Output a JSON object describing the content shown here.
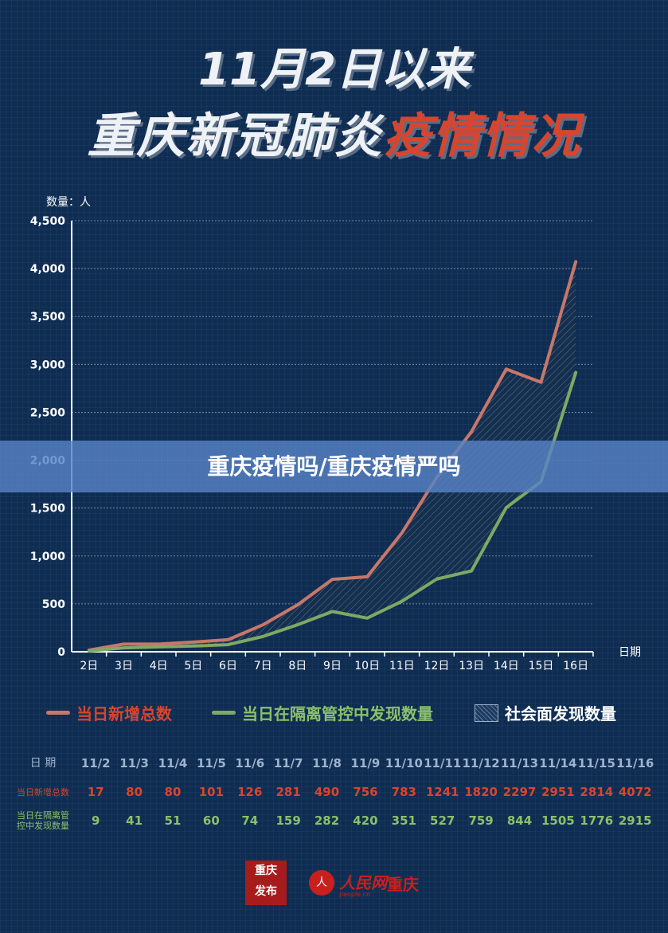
{
  "header": {
    "title_line1": "11月2日以来",
    "title_line2_white": "重庆新冠肺炎",
    "title_line2_red": "疫情情况"
  },
  "overlay_banner": "重庆疫情吗/重庆疫情严吗",
  "colors": {
    "background": "#0f2d52",
    "new_total": "#c9776a",
    "isolation": "#7ea965",
    "accent_red": "#d8452e"
  },
  "chart_data": {
    "type": "line",
    "ylabel": "数量：人",
    "xlabel": "日期",
    "ylim": [
      0,
      4500
    ],
    "yticks": [
      0,
      500,
      1000,
      1500,
      2000,
      2500,
      3000,
      3500,
      4000,
      4500
    ],
    "ytick_labels": [
      "0",
      "500",
      "1,000",
      "1,500",
      "2,000",
      "2,500",
      "3,000",
      "3,500",
      "4,000",
      "4,500"
    ],
    "categories": [
      "2日",
      "3日",
      "4日",
      "5日",
      "6日",
      "7日",
      "8日",
      "9日",
      "10日",
      "11日",
      "12日",
      "13日",
      "14日",
      "15日",
      "16日"
    ],
    "grid": true,
    "legend_position": "bottom",
    "series": [
      {
        "name": "当日新增总数",
        "values": [
          17,
          80,
          80,
          101,
          126,
          281,
          490,
          756,
          783,
          1241,
          1820,
          2297,
          2951,
          2814,
          4072
        ]
      },
      {
        "name": "当日在隔离管控中发现数量",
        "values": [
          9,
          41,
          51,
          60,
          74,
          159,
          282,
          420,
          351,
          527,
          759,
          844,
          1505,
          1776,
          2915
        ]
      }
    ],
    "area_name": "社会面发现数量"
  },
  "table": {
    "header_label": "日 期",
    "dates": [
      "11/2",
      "11/3",
      "11/4",
      "11/5",
      "11/6",
      "11/7",
      "11/8",
      "11/9",
      "11/10",
      "11/11",
      "11/12",
      "11/13",
      "11/14",
      "11/15",
      "11/16"
    ],
    "row1_label": "当日新增总数",
    "row1_values": [
      "17",
      "80",
      "80",
      "101",
      "126",
      "281",
      "490",
      "756",
      "783",
      "1241",
      "1820",
      "2297",
      "2951",
      "2814",
      "4072"
    ],
    "row2_label_line1": "当日在隔离管",
    "row2_label_line2": "控中发现数量",
    "row2_values": [
      "9",
      "41",
      "51",
      "60",
      "74",
      "159",
      "282",
      "420",
      "351",
      "527",
      "759",
      "844",
      "1505",
      "1776",
      "2915"
    ]
  },
  "footer": {
    "logo1_line1": "重庆",
    "logo1_line2": "发布",
    "logo2_mark": "人",
    "logo3_text": "人民网",
    "logo3_sub": "people.cn",
    "logo4_text": "重庆"
  }
}
